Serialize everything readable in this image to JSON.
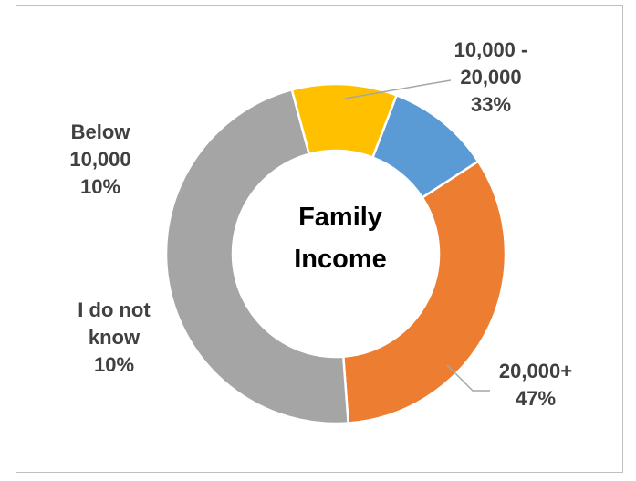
{
  "chart_data": {
    "type": "pie",
    "variant": "donut",
    "title": "Family Income",
    "slices": [
      {
        "label": "10,000 - 20,000",
        "value": 33,
        "percent_label": "33%",
        "color": "#ED7D31"
      },
      {
        "label": "20,000+",
        "value": 47,
        "percent_label": "47%",
        "color": "#A5A5A5"
      },
      {
        "label": "I do not know",
        "value": 10,
        "percent_label": "10%",
        "color": "#FFC000"
      },
      {
        "label": "Below 10,000",
        "value": 10,
        "percent_label": "10%",
        "color": "#5B9BD5"
      }
    ]
  },
  "labels": {
    "slice_a": {
      "line1": "10,000 -",
      "line2": "20,000",
      "pct": "33%"
    },
    "slice_b": {
      "line1": "20,000+",
      "pct": "47%"
    },
    "slice_c": {
      "line1": "I do not",
      "line2": "know",
      "pct": "10%"
    },
    "slice_d": {
      "line1": "Below",
      "line2": "10,000",
      "pct": "10%"
    }
  },
  "center": {
    "line1": "Family",
    "line2": "Income"
  }
}
